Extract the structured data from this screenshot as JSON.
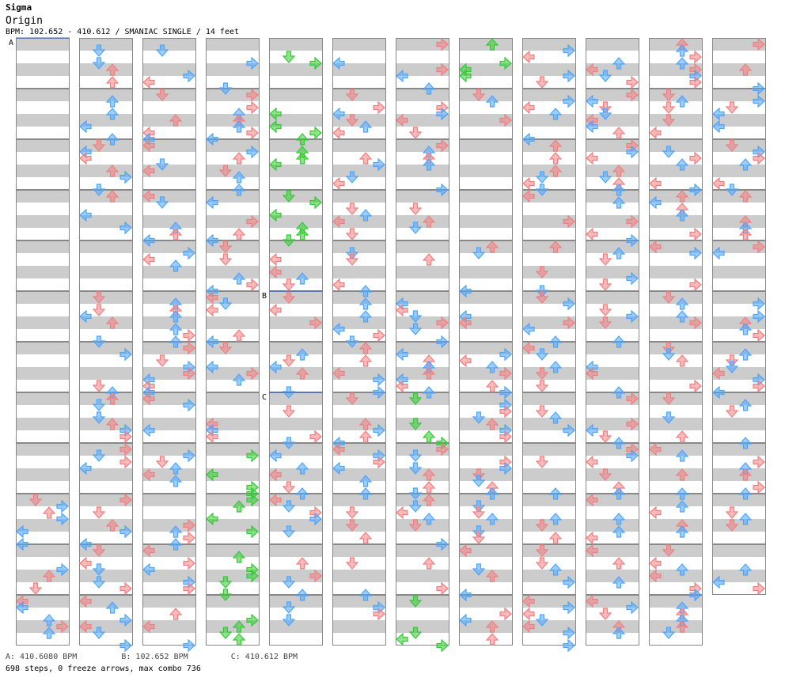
{
  "title": "Sigma",
  "artist": "Origin",
  "info": "BPM: 102.652 - 410.612 / SMANIAC SINGLE / 14 feet",
  "legend_a": "A: 410.6080 BPM",
  "legend_b": "B: 102.652 BPM",
  "legend_c": "C: 410.612 BPM",
  "stats": "698 steps, 0 freeze arrows, max combo 736",
  "colors": {
    "quarter": "#f08080",
    "eighth": "#4da6ff",
    "sixteenth": "#33cc33"
  },
  "chart_data": {
    "type": "step-chart",
    "title": "Sigma",
    "subtitle": "Origin",
    "mode": "SMANIAC SINGLE",
    "difficulty_feet": 14,
    "bpm_range": [
      102.652,
      410.612
    ],
    "bpm_changes": [
      {
        "label": "A",
        "bpm": 410.608
      },
      {
        "label": "B",
        "bpm": 102.652
      },
      {
        "label": "C",
        "bpm": 410.612
      }
    ],
    "columns": 12,
    "measures_per_column": 12,
    "lanes": [
      "left",
      "down",
      "up",
      "right"
    ],
    "steps": 698,
    "freeze_arrows": 0,
    "max_combo": 736,
    "arrow_icons": [
      "arrow-left-icon",
      "arrow-down-icon",
      "arrow-up-icon",
      "arrow-right-icon"
    ]
  }
}
